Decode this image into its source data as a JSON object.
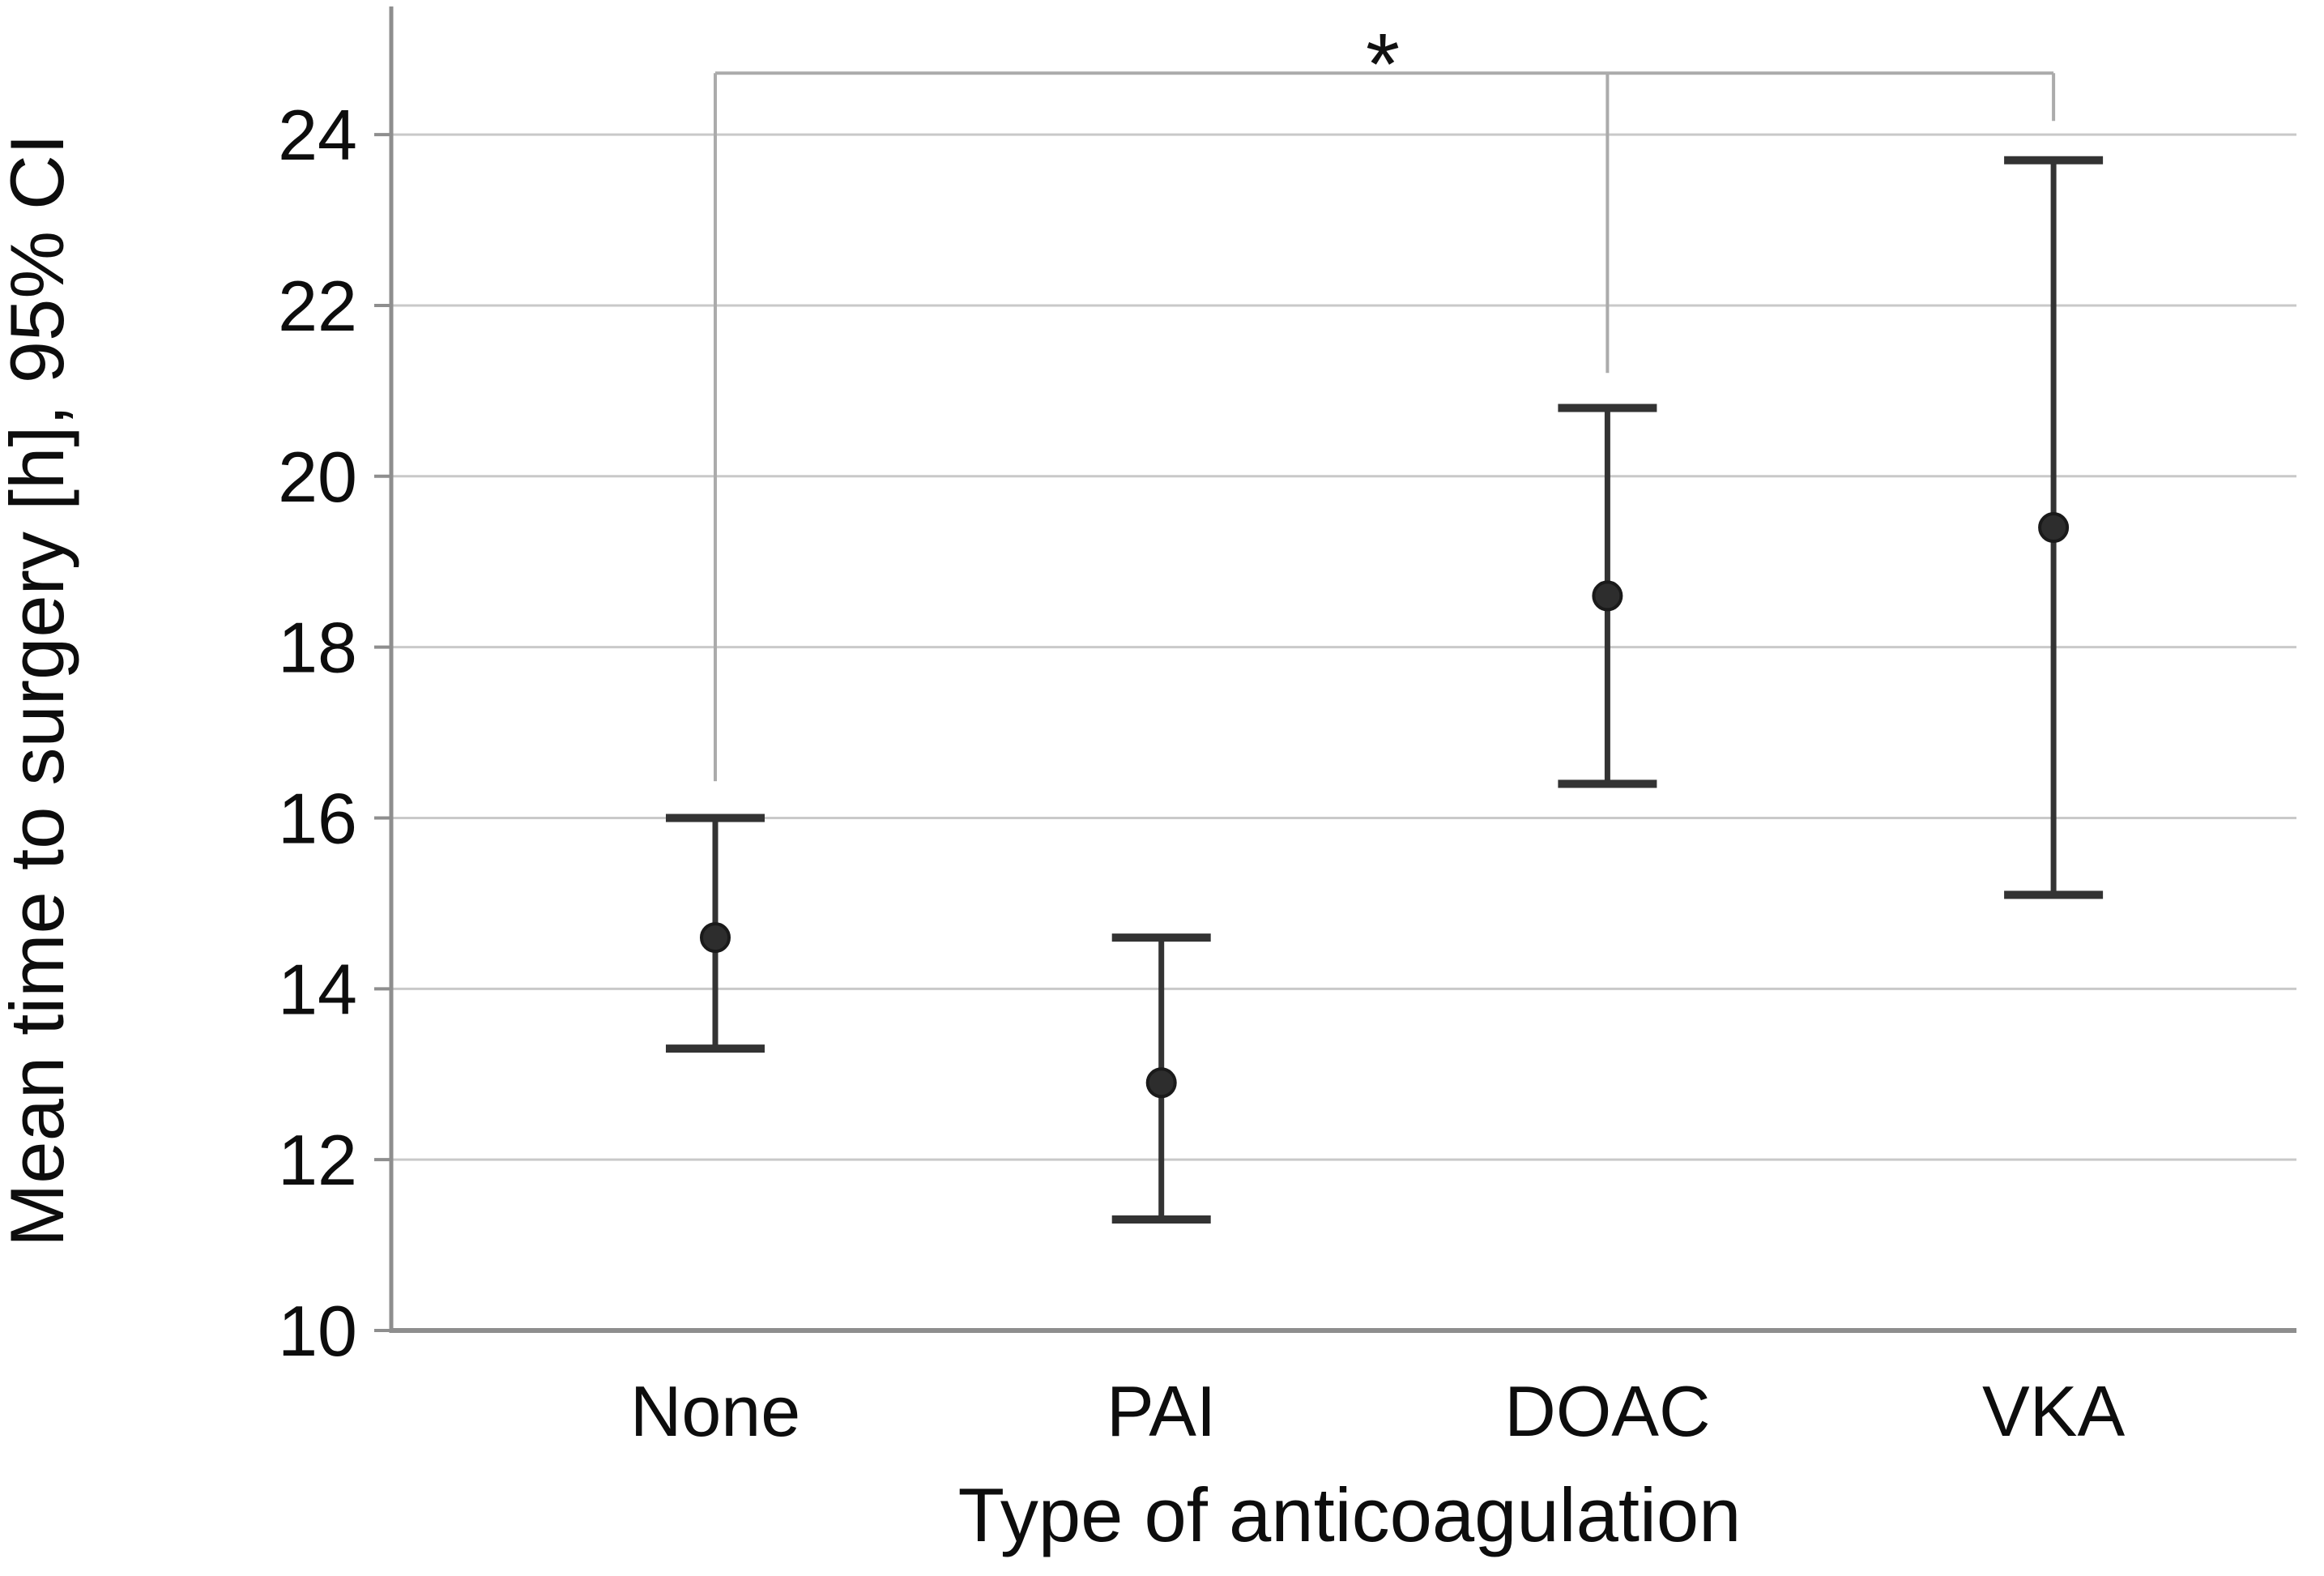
{
  "chart_data": {
    "type": "scatter",
    "subtype": "mean-with-95ci-errorbars",
    "title": "",
    "xlabel": "Type of anticoagulation",
    "ylabel": "Mean time to surgery [h], 95% CI",
    "categories": [
      "None",
      "PAI",
      "DOAC",
      "VKA"
    ],
    "series": [
      {
        "name": "Mean time to surgery [h]",
        "means": [
          14.6,
          12.9,
          18.6,
          19.4
        ],
        "ci_low": [
          13.3,
          11.3,
          16.4,
          15.1
        ],
        "ci_high": [
          16.0,
          14.6,
          20.8,
          23.7
        ]
      }
    ],
    "ylim": [
      10,
      25.5
    ],
    "yticks": [
      10,
      12,
      14,
      16,
      18,
      20,
      22,
      24
    ],
    "grid": "horizontal",
    "legend": "none",
    "significance": {
      "label": "*",
      "connects": [
        "None",
        "DOAC",
        "VKA"
      ],
      "bar_y": 24.72,
      "drop_to": {
        "None": 16.43,
        "DOAC": 21.21,
        "VKA": 24.16
      }
    },
    "colors": {
      "errorbar": "#333333",
      "dot_fill": "#2d2d2d",
      "dot_edge": "#1a1a1a",
      "grid": "#c9c9c9",
      "axis": "#8e8e8e",
      "bracket": "#ababab",
      "text": "#0d0d0d"
    }
  }
}
